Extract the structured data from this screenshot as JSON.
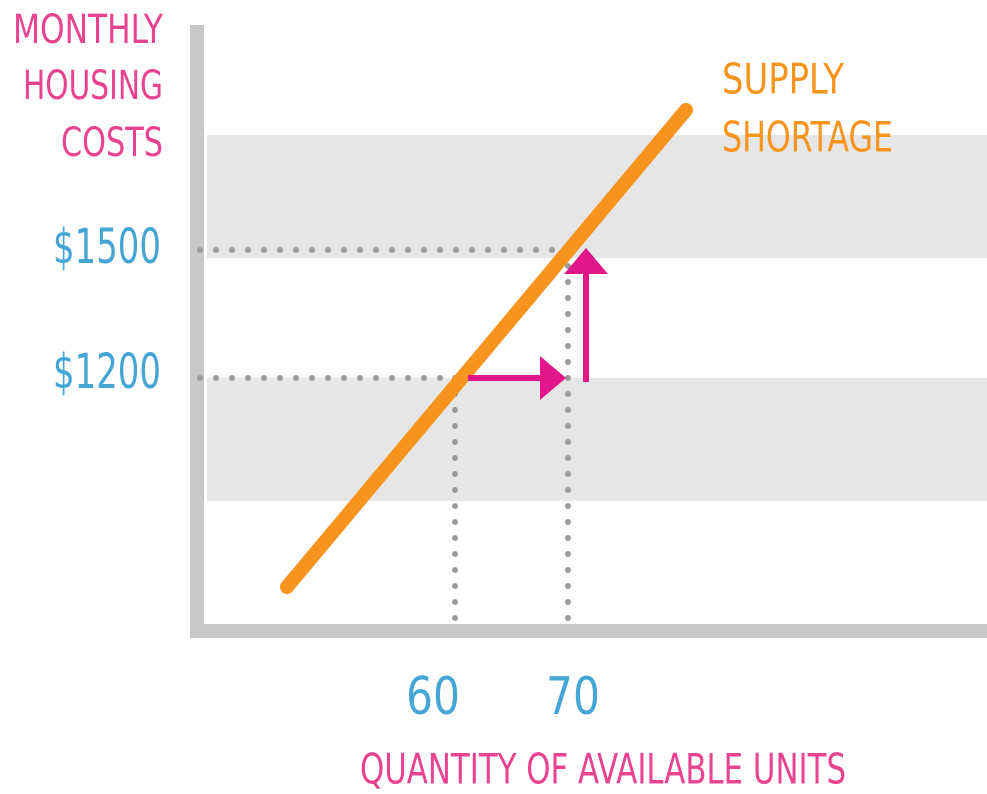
{
  "y_axis": {
    "label": [
      "MONTHLY",
      "HOUSING",
      "COSTS"
    ],
    "ticks": [
      "$1500",
      "$1200"
    ]
  },
  "x_axis": {
    "label": "QUANTITY OF AVAILABLE UNITS",
    "ticks": [
      "60",
      "70"
    ]
  },
  "curve": {
    "label": [
      "SUPPLY",
      "SHORTAGE"
    ]
  }
}
